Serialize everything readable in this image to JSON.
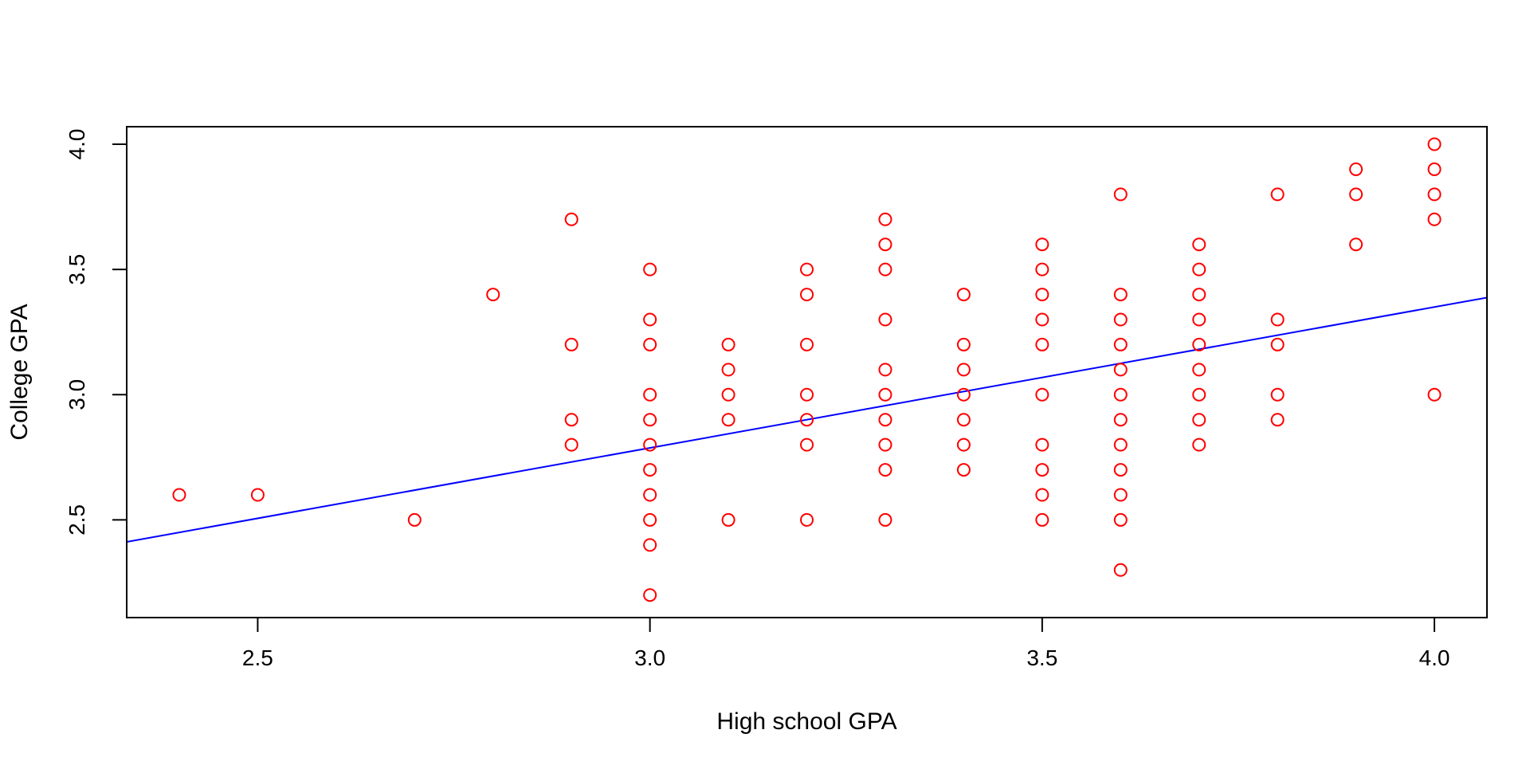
{
  "chart_data": {
    "type": "scatter",
    "title": "",
    "xlabel": "High school  GPA",
    "ylabel": "College GPA",
    "xlim": [
      2.333,
      4.067
    ],
    "ylim": [
      2.11,
      4.07
    ],
    "x_ticks": [
      {
        "value": 2.5,
        "label": "2.5"
      },
      {
        "value": 3.0,
        "label": "3.0"
      },
      {
        "value": 3.5,
        "label": "3.5"
      },
      {
        "value": 4.0,
        "label": "4.0"
      }
    ],
    "y_ticks": [
      {
        "value": 2.5,
        "label": "2.5"
      },
      {
        "value": 3.0,
        "label": "3.0"
      },
      {
        "value": 3.5,
        "label": "3.5"
      },
      {
        "value": 4.0,
        "label": "4.0"
      }
    ],
    "grid": false,
    "legend": "none",
    "point_color": "#ff0000",
    "line_color": "#0000ff",
    "fit_line": {
      "intercept": 1.1,
      "slope": 0.5625
    },
    "points": [
      [
        2.4,
        2.6
      ],
      [
        2.5,
        2.6
      ],
      [
        2.7,
        2.5
      ],
      [
        2.8,
        3.4
      ],
      [
        2.9,
        3.7
      ],
      [
        2.9,
        3.2
      ],
      [
        2.9,
        2.9
      ],
      [
        2.9,
        2.8
      ],
      [
        3.0,
        3.5
      ],
      [
        3.0,
        3.3
      ],
      [
        3.0,
        3.2
      ],
      [
        3.0,
        3.0
      ],
      [
        3.0,
        2.9
      ],
      [
        3.0,
        2.8
      ],
      [
        3.0,
        2.7
      ],
      [
        3.0,
        2.6
      ],
      [
        3.0,
        2.5
      ],
      [
        3.0,
        2.4
      ],
      [
        3.0,
        2.2
      ],
      [
        3.1,
        3.2
      ],
      [
        3.1,
        3.1
      ],
      [
        3.1,
        3.0
      ],
      [
        3.1,
        2.9
      ],
      [
        3.1,
        2.5
      ],
      [
        3.2,
        3.5
      ],
      [
        3.2,
        3.4
      ],
      [
        3.2,
        3.2
      ],
      [
        3.2,
        3.0
      ],
      [
        3.2,
        2.9
      ],
      [
        3.2,
        2.8
      ],
      [
        3.2,
        2.5
      ],
      [
        3.3,
        3.7
      ],
      [
        3.3,
        3.6
      ],
      [
        3.3,
        3.5
      ],
      [
        3.3,
        3.3
      ],
      [
        3.3,
        3.1
      ],
      [
        3.3,
        3.0
      ],
      [
        3.3,
        2.9
      ],
      [
        3.3,
        2.8
      ],
      [
        3.3,
        2.7
      ],
      [
        3.3,
        2.5
      ],
      [
        3.4,
        3.4
      ],
      [
        3.4,
        3.2
      ],
      [
        3.4,
        3.1
      ],
      [
        3.4,
        3.0
      ],
      [
        3.4,
        2.9
      ],
      [
        3.4,
        2.8
      ],
      [
        3.4,
        2.7
      ],
      [
        3.5,
        3.6
      ],
      [
        3.5,
        3.5
      ],
      [
        3.5,
        3.4
      ],
      [
        3.5,
        3.3
      ],
      [
        3.5,
        3.2
      ],
      [
        3.5,
        3.0
      ],
      [
        3.5,
        2.8
      ],
      [
        3.5,
        2.7
      ],
      [
        3.5,
        2.6
      ],
      [
        3.5,
        2.5
      ],
      [
        3.6,
        3.8
      ],
      [
        3.6,
        3.4
      ],
      [
        3.6,
        3.3
      ],
      [
        3.6,
        3.2
      ],
      [
        3.6,
        3.1
      ],
      [
        3.6,
        3.0
      ],
      [
        3.6,
        2.9
      ],
      [
        3.6,
        2.8
      ],
      [
        3.6,
        2.7
      ],
      [
        3.6,
        2.6
      ],
      [
        3.6,
        2.5
      ],
      [
        3.6,
        2.3
      ],
      [
        3.7,
        3.6
      ],
      [
        3.7,
        3.5
      ],
      [
        3.7,
        3.4
      ],
      [
        3.7,
        3.3
      ],
      [
        3.7,
        3.2
      ],
      [
        3.7,
        3.1
      ],
      [
        3.7,
        3.0
      ],
      [
        3.7,
        2.9
      ],
      [
        3.7,
        2.8
      ],
      [
        3.8,
        3.8
      ],
      [
        3.8,
        3.3
      ],
      [
        3.8,
        3.2
      ],
      [
        3.8,
        3.0
      ],
      [
        3.8,
        2.9
      ],
      [
        3.9,
        3.9
      ],
      [
        3.9,
        3.8
      ],
      [
        3.9,
        3.6
      ],
      [
        4.0,
        4.0
      ],
      [
        4.0,
        3.9
      ],
      [
        4.0,
        3.8
      ],
      [
        4.0,
        3.7
      ],
      [
        4.0,
        3.0
      ]
    ]
  }
}
